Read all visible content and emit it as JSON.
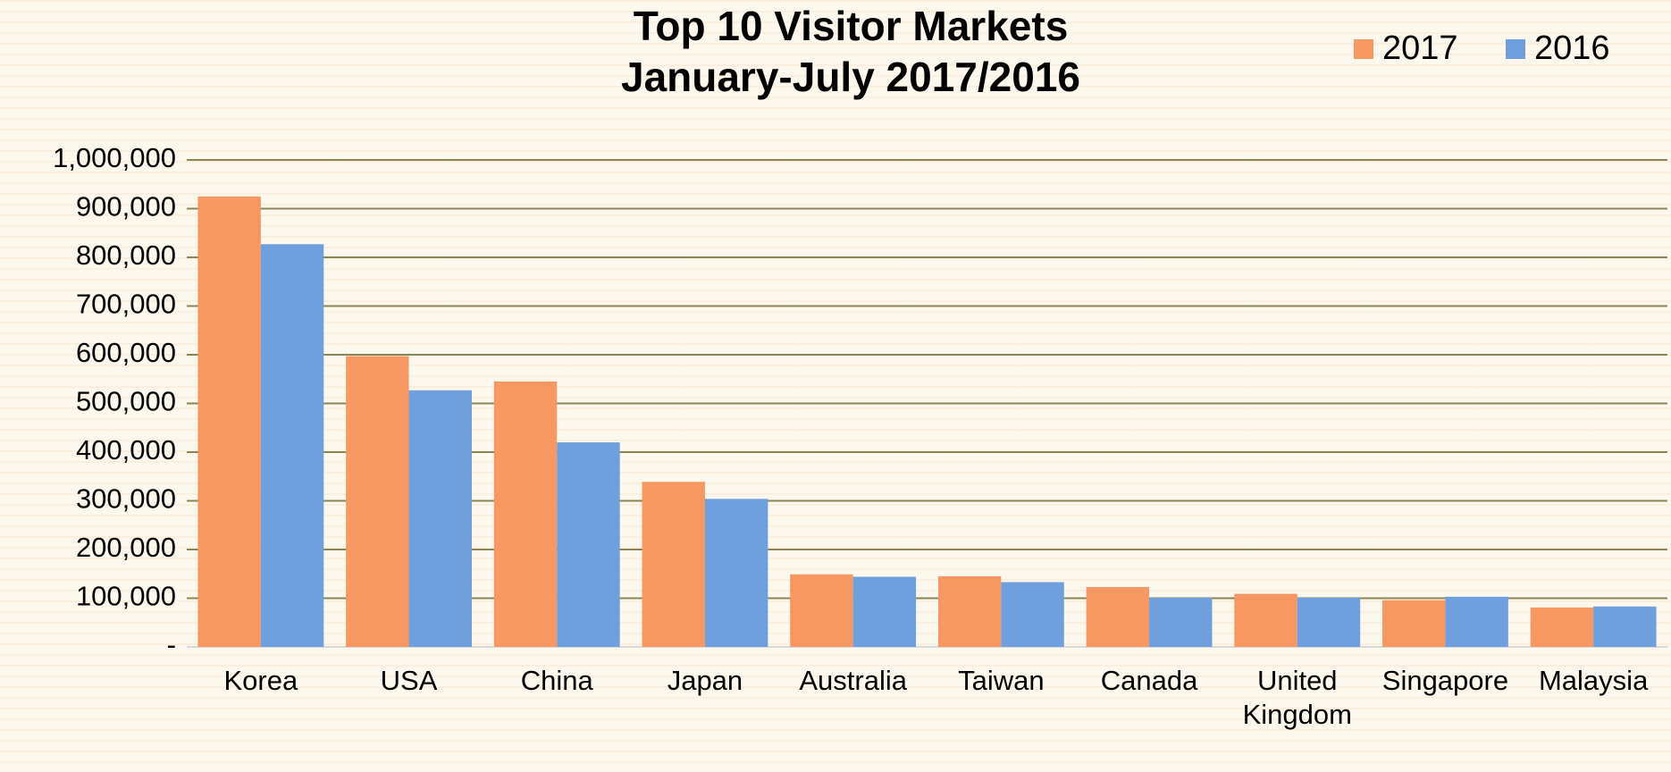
{
  "chart_data": {
    "type": "bar",
    "title": "Top 10 Visitor Markets",
    "subtitle": "January-July 2017/2016",
    "categories": [
      "Korea",
      "USA",
      "China",
      "Japan",
      "Australia",
      "Taiwan",
      "Canada",
      "United Kingdom",
      "Singapore",
      "Malaysia"
    ],
    "series": [
      {
        "name": "2017",
        "color": "#f79862",
        "values": [
          925000,
          597000,
          545000,
          339000,
          149000,
          145000,
          123000,
          109000,
          96000,
          81000
        ]
      },
      {
        "name": "2016",
        "color": "#6f9fdc",
        "values": [
          827000,
          527000,
          420000,
          304000,
          144000,
          133000,
          101000,
          101000,
          103000,
          83000
        ]
      }
    ],
    "ylim": [
      0,
      1000000
    ],
    "yticks": [
      {
        "value": 0,
        "label": "-"
      },
      {
        "value": 100000,
        "label": "100,000"
      },
      {
        "value": 200000,
        "label": "200,000"
      },
      {
        "value": 300000,
        "label": "300,000"
      },
      {
        "value": 400000,
        "label": "400,000"
      },
      {
        "value": 500000,
        "label": "500,000"
      },
      {
        "value": 600000,
        "label": "600,000"
      },
      {
        "value": 700000,
        "label": "700,000"
      },
      {
        "value": 800000,
        "label": "800,000"
      },
      {
        "value": 900000,
        "label": "900,000"
      },
      {
        "value": 1000000,
        "label": "1,000,000"
      }
    ],
    "grid": true,
    "legend": "top-right"
  }
}
